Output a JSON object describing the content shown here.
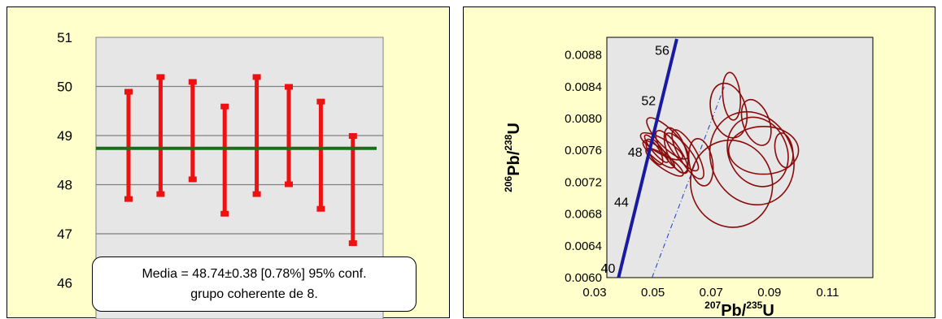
{
  "chart_data": [
    {
      "type": "error-bar",
      "ylim": [
        46,
        51
      ],
      "yticks": [
        "46",
        "47",
        "48",
        "49",
        "50",
        "51"
      ],
      "ytick_values": [
        46,
        47,
        48,
        49,
        50,
        51
      ],
      "grid": true,
      "series": [
        {
          "low": 47.7,
          "high": 49.9
        },
        {
          "low": 47.8,
          "high": 50.2
        },
        {
          "low": 48.1,
          "high": 50.1
        },
        {
          "low": 47.4,
          "high": 49.6
        },
        {
          "low": 47.8,
          "high": 50.2
        },
        {
          "low": 48.0,
          "high": 50.0
        },
        {
          "low": 47.5,
          "high": 49.7
        },
        {
          "low": 46.8,
          "high": 49.0
        }
      ],
      "mean": 48.74,
      "box_line1": "Media = 48.74±0.38  [0.78%]  95% conf.",
      "box_line2": "grupo coherente de 8.",
      "colors": {
        "bars": "#ee1111",
        "mean": "#1a6e1a",
        "plot_bg": "#e6e6e6",
        "panel_bg": "#ffffcc"
      }
    },
    {
      "type": "concordia",
      "xlim": [
        0.03,
        0.12
      ],
      "ylim": [
        0.006,
        0.009
      ],
      "xticks": [
        "0.03",
        "0.05",
        "0.07",
        "0.09",
        "0.11"
      ],
      "xtick_values": [
        0.03,
        0.05,
        0.07,
        0.09,
        0.11
      ],
      "yticks": [
        "0.0060",
        "0.0064",
        "0.0068",
        "0.0072",
        "0.0076",
        "0.0080",
        "0.0084",
        "0.0088"
      ],
      "ytick_values": [
        0.006,
        0.0064,
        0.0068,
        0.0072,
        0.0076,
        0.008,
        0.0084,
        0.0088
      ],
      "xlabel": {
        "sup1": "207",
        "base1": "Pb/",
        "sup2": "235",
        "base2": "U"
      },
      "ylabel": {
        "sup1": "206",
        "base1": "Pb/",
        "sup2": "238",
        "base2": "U"
      },
      "concordia_ages": [
        {
          "label": "40",
          "x": 0.0382,
          "y": 0.00602
        },
        {
          "label": "44",
          "x": 0.0428,
          "y": 0.00685
        },
        {
          "label": "48",
          "x": 0.0475,
          "y": 0.00748
        },
        {
          "label": "52",
          "x": 0.0521,
          "y": 0.00813
        },
        {
          "label": "56",
          "x": 0.0568,
          "y": 0.00876
        }
      ],
      "concordia_line": {
        "x1": 0.0382,
        "y1": 0.006,
        "x2": 0.0582,
        "y2": 0.009
      },
      "reference_line": {
        "x1": 0.0497,
        "y1": 0.006,
        "x2": 0.0745,
        "y2": 0.0084
      },
      "ellipses": [
        {
          "cx": 0.0505,
          "cy": 0.00758,
          "rx": 0.0018,
          "ry": 0.00018,
          "angle": -30
        },
        {
          "cx": 0.0512,
          "cy": 0.00762,
          "rx": 0.0015,
          "ry": 0.00022,
          "angle": -40
        },
        {
          "cx": 0.052,
          "cy": 0.00755,
          "rx": 0.002,
          "ry": 0.00025,
          "angle": -50
        },
        {
          "cx": 0.053,
          "cy": 0.00765,
          "rx": 0.0025,
          "ry": 0.0003,
          "angle": -60
        },
        {
          "cx": 0.054,
          "cy": 0.00745,
          "rx": 0.0022,
          "ry": 0.00028,
          "angle": -55
        },
        {
          "cx": 0.055,
          "cy": 0.00775,
          "rx": 0.003,
          "ry": 0.00035,
          "angle": -45
        },
        {
          "cx": 0.0565,
          "cy": 0.00758,
          "rx": 0.0028,
          "ry": 0.00032,
          "angle": -35
        },
        {
          "cx": 0.058,
          "cy": 0.0076,
          "rx": 0.0032,
          "ry": 0.0003,
          "angle": -20
        },
        {
          "cx": 0.06,
          "cy": 0.00758,
          "rx": 0.0025,
          "ry": 0.0003,
          "angle": -40
        },
        {
          "cx": 0.062,
          "cy": 0.00755,
          "rx": 0.003,
          "ry": 0.00035,
          "angle": -30
        },
        {
          "cx": 0.0665,
          "cy": 0.00745,
          "rx": 0.004,
          "ry": 0.0003,
          "angle": -10
        },
        {
          "cx": 0.076,
          "cy": 0.0081,
          "rx": 0.006,
          "ry": 0.00035,
          "angle": -15
        },
        {
          "cx": 0.077,
          "cy": 0.00828,
          "rx": 0.003,
          "ry": 0.0003,
          "angle": -5
        },
        {
          "cx": 0.0855,
          "cy": 0.00795,
          "rx": 0.0045,
          "ry": 0.0003,
          "angle": -20
        },
        {
          "cx": 0.086,
          "cy": 0.00758,
          "rx": 0.01,
          "ry": 0.00045,
          "angle": -25
        },
        {
          "cx": 0.084,
          "cy": 0.0075,
          "rx": 0.014,
          "ry": 0.0006,
          "angle": -25
        },
        {
          "cx": 0.077,
          "cy": 0.00718,
          "rx": 0.014,
          "ry": 0.00055,
          "angle": -15
        },
        {
          "cx": 0.088,
          "cy": 0.0076,
          "rx": 0.012,
          "ry": 0.0003,
          "angle": 0
        },
        {
          "cx": 0.095,
          "cy": 0.0076,
          "rx": 0.003,
          "ry": 0.00022,
          "angle": -10
        }
      ],
      "colors": {
        "ellipses": "#8b0a0a",
        "concordia": "#1a1aa0",
        "reference": "#1c3cc8",
        "plot_bg": "#e6e6e6",
        "panel_bg": "#ffffcc"
      }
    }
  ]
}
